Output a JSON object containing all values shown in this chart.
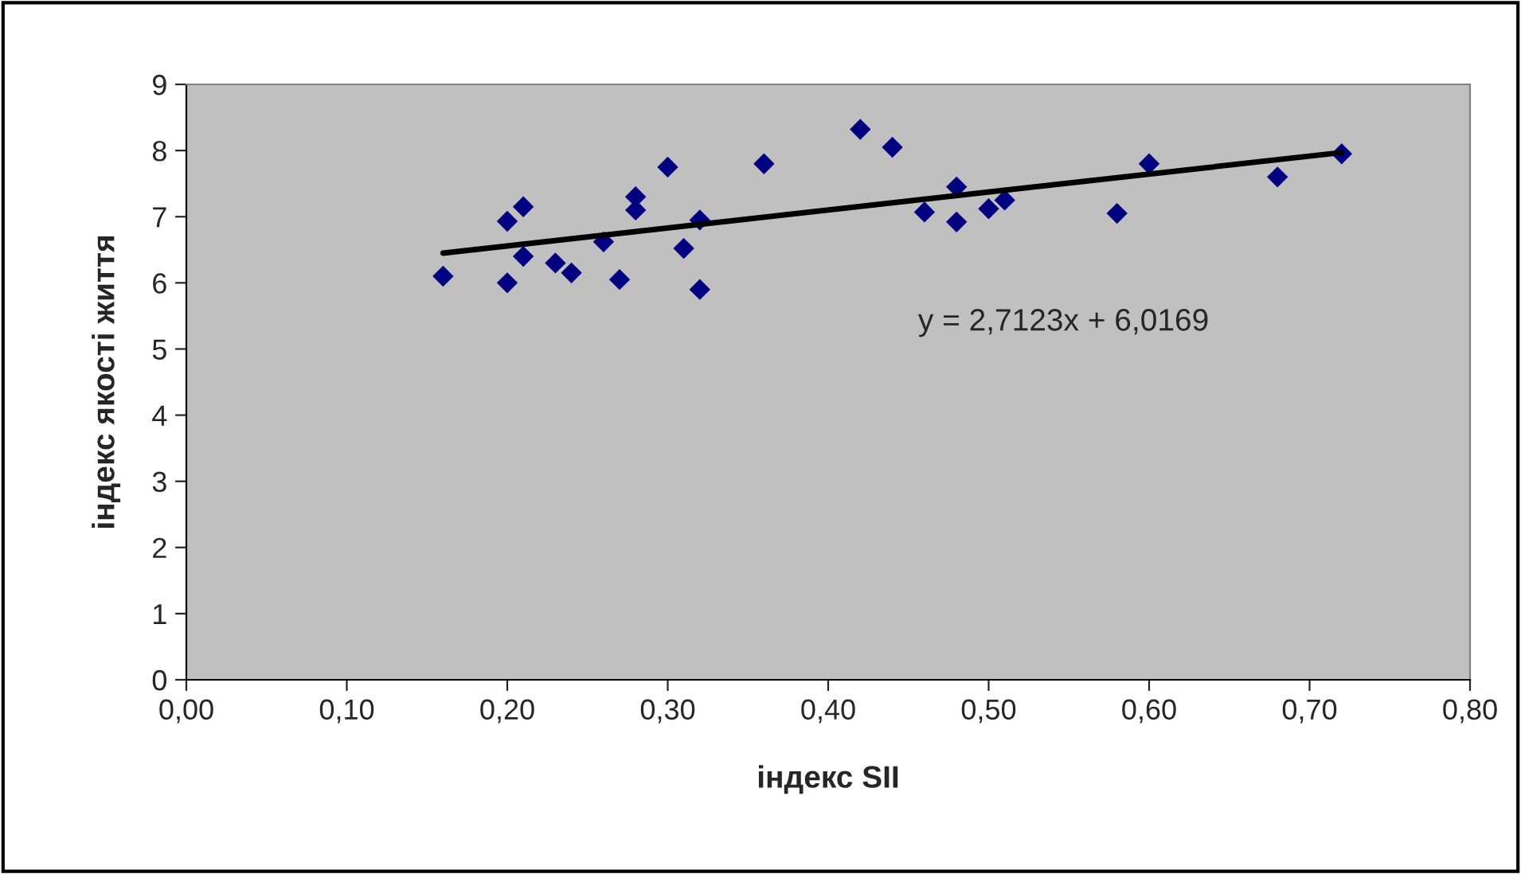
{
  "chart_data": {
    "type": "scatter",
    "xlabel": "індекс SII",
    "ylabel": "індекс якості життя",
    "annotations": [
      "y = 2,7123x + 6,0169"
    ],
    "series": [
      {
        "color": "#000080",
        "marker": "diamond",
        "x": [
          0.16,
          0.2,
          0.2,
          0.21,
          0.21,
          0.23,
          0.24,
          0.26,
          0.27,
          0.28,
          0.28,
          0.3,
          0.31,
          0.32,
          0.32,
          0.36,
          0.42,
          0.44,
          0.46,
          0.48,
          0.48,
          0.5,
          0.51,
          0.58,
          0.6,
          0.68,
          0.72
        ],
        "values": [
          6.1,
          6.0,
          6.93,
          7.15,
          6.4,
          6.3,
          6.15,
          6.62,
          6.05,
          7.3,
          7.1,
          7.75,
          6.52,
          6.95,
          5.9,
          7.8,
          8.32,
          8.05,
          7.07,
          7.45,
          6.92,
          7.12,
          7.25,
          7.05,
          7.8,
          7.6,
          7.95
        ]
      },
      {
        "type": "line",
        "color": "#000000",
        "marker": "none",
        "line_style": "solid",
        "x": [
          0.16,
          0.72
        ],
        "values": [
          6.45,
          7.97
        ]
      }
    ],
    "xlim": [
      0,
      0.8
    ],
    "xticks": [
      {
        "value": 0,
        "label": "0,00"
      },
      {
        "value": 0.1,
        "label": "0,10"
      },
      {
        "value": 0.2,
        "label": "0,20"
      },
      {
        "value": 0.3,
        "label": "0,30"
      },
      {
        "value": 0.4,
        "label": "0,40"
      },
      {
        "value": 0.5,
        "label": "0,50"
      },
      {
        "value": 0.6,
        "label": "0,60"
      },
      {
        "value": 0.7,
        "label": "0,70"
      },
      {
        "value": 0.8,
        "label": "0,80"
      }
    ],
    "ylim": [
      0,
      9
    ],
    "yticks": [
      0,
      1,
      2,
      3,
      4,
      5,
      6,
      7,
      8,
      9
    ],
    "grid": false,
    "legend": false
  }
}
